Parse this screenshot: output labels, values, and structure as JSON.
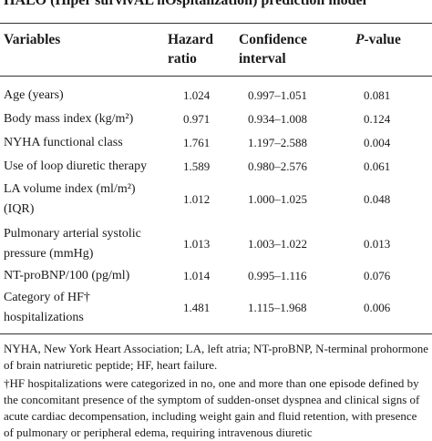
{
  "title": "HALO (Hiper survivAL hOspitalization) prediction model",
  "table": {
    "header": {
      "variables": [
        "Variables"
      ],
      "hazard_ratio": [
        "Hazard",
        "ratio"
      ],
      "confidence_interval": [
        "Confidence",
        "interval"
      ],
      "p_value": {
        "italic": "P",
        "rest": "-value"
      }
    },
    "rows": [
      [
        [
          "Age (years)"
        ],
        "1.024",
        "0.997–1.051",
        "0.081"
      ],
      [
        [
          "Body mass index (kg/m²)"
        ],
        "0.971",
        "0.934–1.008",
        "0.124"
      ],
      [
        [
          "NYHA functional class"
        ],
        "1.761",
        "1.197–2.588",
        "0.004"
      ],
      [
        [
          "Use of loop diuretic therapy"
        ],
        "1.589",
        "0.980–2.576",
        "0.061"
      ],
      [
        [
          "LA volume index (ml/m²)",
          "(IQR)"
        ],
        "1.012",
        "1.000–1.025",
        "0.048"
      ],
      [
        [
          "Pulmonary arterial systolic",
          "pressure (mmHg)"
        ],
        "1.013",
        "1.003–1.022",
        "0.013"
      ],
      [
        [
          "NT-proBNP/100 (pg/ml)"
        ],
        "1.014",
        "0.995–1.116",
        "0.076"
      ],
      [
        [
          "Category of HF†",
          "hospitalizations"
        ],
        "1.481",
        "1.115–1.968",
        "0.006"
      ]
    ]
  },
  "footnotes": [
    [
      "NYHA, New York Heart Association; LA, left atria; NT-proBNP, N-terminal prohormone",
      "of brain natriuretic peptide; HF, heart failure."
    ],
    [
      "†HF hospitalizations were categorized in no, one and more than one episode defined by",
      "the concomitant presence of the symptom of sudden-onset dyspnea and clinical signs of",
      "acute cardiac decompensation, including weight gain and fluid retention, with presence",
      "of pulmonary or peripheral edema, requiring intravenous diuretic"
    ]
  ]
}
